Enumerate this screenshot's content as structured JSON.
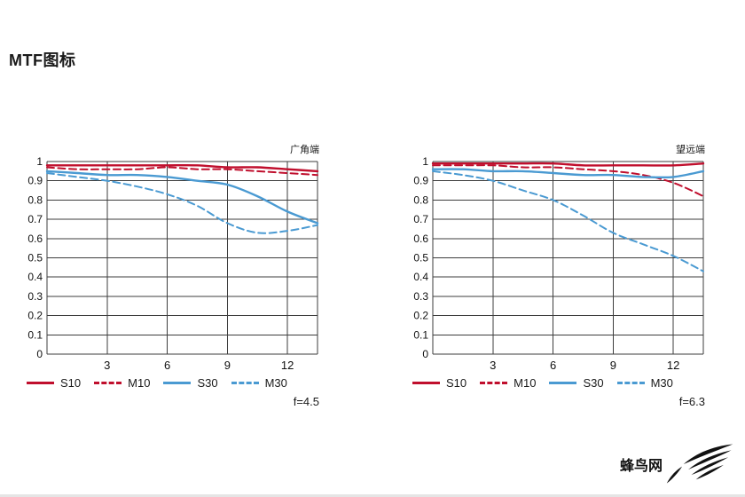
{
  "page": {
    "title": "MTF图标",
    "logo_text": "蜂鸟网"
  },
  "chart_data": [
    {
      "type": "line",
      "title": "广角端",
      "aperture_label": "f=4.5",
      "xlabel": "",
      "ylabel": "",
      "xlim": [
        0,
        13.5
      ],
      "ylim": [
        0,
        1
      ],
      "xticks": [
        3,
        6,
        9,
        12
      ],
      "xtick_labels": [
        "3",
        "6",
        "9",
        "12"
      ],
      "yticks": [
        0,
        0.1,
        0.2,
        0.3,
        0.4,
        0.5,
        0.6,
        0.7,
        0.8,
        0.9,
        1
      ],
      "ytick_labels": [
        "0",
        "0.1",
        "0.2",
        "0.3",
        "0.4",
        "0.5",
        "0.6",
        "0.7",
        "0.8",
        "0.9",
        "1"
      ],
      "grid": true,
      "legend_position": "bottom",
      "x": [
        0,
        1.5,
        3,
        4.5,
        6,
        7.5,
        9,
        10.5,
        12,
        13.5
      ],
      "series": [
        {
          "name": "S10",
          "color": "#c00f2d",
          "style": "solid",
          "values": [
            0.98,
            0.98,
            0.98,
            0.98,
            0.98,
            0.98,
            0.97,
            0.97,
            0.96,
            0.95
          ]
        },
        {
          "name": "M10",
          "color": "#c00f2d",
          "style": "dashed",
          "values": [
            0.97,
            0.96,
            0.96,
            0.96,
            0.97,
            0.96,
            0.96,
            0.95,
            0.94,
            0.93
          ]
        },
        {
          "name": "S30",
          "color": "#4a9ad2",
          "style": "solid",
          "values": [
            0.95,
            0.94,
            0.93,
            0.93,
            0.92,
            0.9,
            0.88,
            0.82,
            0.74,
            0.68
          ]
        },
        {
          "name": "M30",
          "color": "#4a9ad2",
          "style": "dashed",
          "values": [
            0.94,
            0.92,
            0.9,
            0.87,
            0.83,
            0.77,
            0.68,
            0.63,
            0.64,
            0.67
          ]
        }
      ]
    },
    {
      "type": "line",
      "title": "望远端",
      "aperture_label": "f=6.3",
      "xlabel": "",
      "ylabel": "",
      "xlim": [
        0,
        13.5
      ],
      "ylim": [
        0,
        1
      ],
      "xticks": [
        3,
        6,
        9,
        12
      ],
      "xtick_labels": [
        "3",
        "6",
        "9",
        "12"
      ],
      "yticks": [
        0,
        0.1,
        0.2,
        0.3,
        0.4,
        0.5,
        0.6,
        0.7,
        0.8,
        0.9,
        1
      ],
      "ytick_labels": [
        "0",
        "0.1",
        "0.2",
        "0.3",
        "0.4",
        "0.5",
        "0.6",
        "0.7",
        "0.8",
        "0.9",
        "1"
      ],
      "grid": true,
      "legend_position": "bottom",
      "x": [
        0,
        1.5,
        3,
        4.5,
        6,
        7.5,
        9,
        10.5,
        12,
        13.5
      ],
      "series": [
        {
          "name": "S10",
          "color": "#c00f2d",
          "style": "solid",
          "values": [
            0.99,
            0.99,
            0.99,
            0.99,
            0.99,
            0.98,
            0.98,
            0.98,
            0.98,
            0.99
          ]
        },
        {
          "name": "M10",
          "color": "#c00f2d",
          "style": "dashed",
          "values": [
            0.98,
            0.98,
            0.98,
            0.97,
            0.97,
            0.96,
            0.95,
            0.93,
            0.89,
            0.82
          ]
        },
        {
          "name": "S30",
          "color": "#4a9ad2",
          "style": "solid",
          "values": [
            0.96,
            0.96,
            0.95,
            0.95,
            0.94,
            0.93,
            0.93,
            0.92,
            0.92,
            0.95
          ]
        },
        {
          "name": "M30",
          "color": "#4a9ad2",
          "style": "dashed",
          "values": [
            0.95,
            0.93,
            0.9,
            0.85,
            0.8,
            0.72,
            0.63,
            0.57,
            0.51,
            0.43
          ]
        }
      ]
    }
  ]
}
